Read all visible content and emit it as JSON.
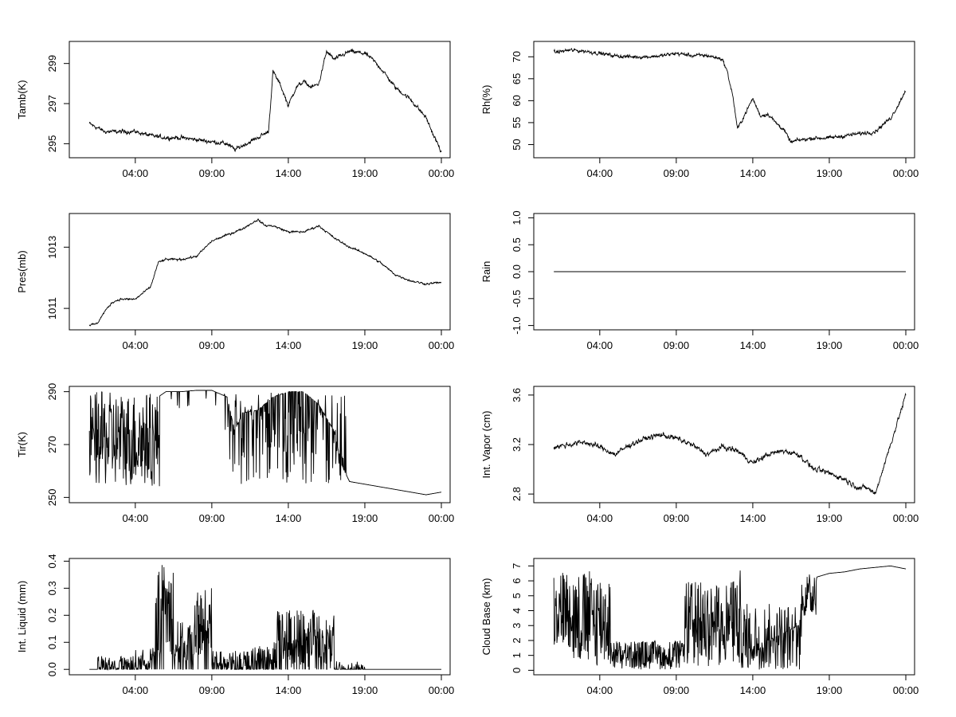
{
  "chart_data": [
    {
      "type": "line",
      "ylabel": "Tamb(K)",
      "xticks": [
        "04:00",
        "09:00",
        "14:00",
        "19:00",
        "00:00"
      ],
      "yticks": [
        "295",
        "297",
        "299"
      ],
      "xlim": [
        0,
        24
      ],
      "ylim": [
        294.3,
        300.1
      ],
      "noise": 0.12,
      "series": [
        {
          "x": [
            1,
            1.5,
            2,
            3,
            4,
            5,
            6,
            7,
            8,
            9,
            10,
            10.5,
            11,
            12,
            12.7,
            13,
            13.5,
            14,
            14.5,
            15,
            15.5,
            16,
            16.5,
            17,
            18,
            19,
            19.5,
            20,
            21,
            22,
            23,
            23.5,
            24
          ],
          "y": [
            296.0,
            295.8,
            295.6,
            295.6,
            295.6,
            295.4,
            295.3,
            295.3,
            295.2,
            295.1,
            295.0,
            294.7,
            294.9,
            295.3,
            295.6,
            298.6,
            297.9,
            296.9,
            297.8,
            298.1,
            297.8,
            298.0,
            299.6,
            299.2,
            299.6,
            299.5,
            299.2,
            298.8,
            297.8,
            297.2,
            296.3,
            295.4,
            294.6
          ]
        }
      ]
    },
    {
      "type": "line",
      "ylabel": "Rh(%)",
      "xticks": [
        "04:00",
        "09:00",
        "14:00",
        "19:00",
        "00:00"
      ],
      "yticks": [
        "50",
        "55",
        "60",
        "65",
        "70"
      ],
      "xlim": [
        0,
        24
      ],
      "ylim": [
        47,
        73.5
      ],
      "noise": 0.5,
      "series": [
        {
          "x": [
            1,
            2,
            3,
            4,
            5,
            6,
            7,
            8,
            9,
            10,
            11,
            12,
            12.3,
            12.7,
            13,
            13.5,
            14,
            14.5,
            15,
            15.5,
            16,
            16.5,
            17,
            18,
            19,
            20,
            21,
            22,
            23,
            23.5,
            24
          ],
          "y": [
            71.0,
            71.5,
            71.3,
            70.8,
            70.2,
            70.0,
            70.0,
            70.2,
            70.8,
            70.3,
            70.3,
            69.5,
            67.0,
            61.0,
            53.5,
            57.0,
            60.5,
            56.5,
            57.0,
            55.0,
            53.5,
            50.5,
            51.0,
            51.5,
            51.5,
            52.0,
            52.5,
            53.0,
            56.0,
            59.0,
            62.5
          ]
        }
      ]
    },
    {
      "type": "line",
      "ylabel": "Pres(mb)",
      "xticks": [
        "04:00",
        "09:00",
        "14:00",
        "19:00",
        "00:00"
      ],
      "yticks": [
        "1011",
        "1013"
      ],
      "xlim": [
        0,
        24
      ],
      "ylim": [
        1010.3,
        1014.1
      ],
      "noise": 0.04,
      "series": [
        {
          "x": [
            1,
            1.5,
            2,
            2.5,
            3,
            4,
            5,
            5.5,
            6,
            7,
            8,
            9,
            10,
            11,
            12,
            12.5,
            13,
            14,
            15,
            16,
            17,
            18,
            19,
            20,
            21,
            22,
            23,
            24
          ],
          "y": [
            1010.45,
            1010.5,
            1010.9,
            1011.2,
            1011.3,
            1011.3,
            1011.7,
            1012.5,
            1012.6,
            1012.6,
            1012.7,
            1013.2,
            1013.4,
            1013.6,
            1013.9,
            1013.7,
            1013.7,
            1013.5,
            1013.5,
            1013.7,
            1013.3,
            1013.0,
            1012.8,
            1012.5,
            1012.1,
            1011.9,
            1011.8,
            1011.85
          ]
        }
      ]
    },
    {
      "type": "line",
      "ylabel": "Rain",
      "xticks": [
        "04:00",
        "09:00",
        "14:00",
        "19:00",
        "00:00"
      ],
      "yticks": [
        "-1.0",
        "-0.5",
        "0.0",
        "0.5",
        "1.0"
      ],
      "xlim": [
        0,
        24
      ],
      "ylim": [
        -1.08,
        1.08
      ],
      "noise": 0,
      "series": [
        {
          "x": [
            1,
            24
          ],
          "y": [
            0,
            0
          ]
        }
      ]
    },
    {
      "type": "line",
      "ylabel": "Tir(K)",
      "xticks": [
        "04:00",
        "09:00",
        "14:00",
        "19:00",
        "00:00"
      ],
      "yticks": [
        "250",
        "270",
        "290"
      ],
      "xlim": [
        0,
        24
      ],
      "ylim": [
        248,
        292
      ],
      "noise": 0,
      "series": [
        {
          "x": [
            1,
            2,
            3,
            4,
            5,
            5.5,
            6,
            7,
            8,
            9,
            10,
            10.5,
            11,
            12,
            13,
            14,
            15,
            16,
            17,
            17.5,
            18,
            19,
            20,
            21,
            22,
            23,
            24
          ],
          "y": [
            270,
            268,
            268,
            269,
            272,
            288,
            290,
            290,
            290.5,
            290.5,
            288,
            275,
            282,
            283,
            288,
            290,
            290,
            285,
            275,
            262,
            256,
            255,
            254,
            253,
            252,
            251,
            252
          ]
        }
      ],
      "spikes": {
        "step": 0.025,
        "ranges": [
          {
            "from": 1,
            "to": 5.6,
            "lo": 254,
            "hi": 290,
            "prob": 1
          },
          {
            "from": 6.2,
            "to": 9.8,
            "lo": 282,
            "hi": 290,
            "prob": 0.06
          },
          {
            "from": 9.8,
            "to": 17.8,
            "lo": 255,
            "hi": 290,
            "prob": 0.45
          }
        ]
      }
    },
    {
      "type": "line",
      "ylabel": "Int. Vapor (cm)",
      "xticks": [
        "04:00",
        "09:00",
        "14:00",
        "19:00",
        "00:00"
      ],
      "yticks": [
        "2.8",
        "3.2",
        "3.6"
      ],
      "xlim": [
        0,
        24
      ],
      "ylim": [
        2.73,
        3.67
      ],
      "noise": 0.025,
      "series": [
        {
          "x": [
            1,
            2,
            3,
            4,
            5,
            6,
            7,
            8,
            9,
            10,
            11,
            12,
            13,
            14,
            15,
            16,
            17,
            18,
            19,
            20,
            20.5,
            21,
            21.5,
            22,
            22.5,
            23,
            23.5,
            24
          ],
          "y": [
            3.18,
            3.2,
            3.22,
            3.18,
            3.12,
            3.2,
            3.25,
            3.28,
            3.25,
            3.2,
            3.12,
            3.18,
            3.15,
            3.05,
            3.12,
            3.15,
            3.12,
            3.0,
            2.97,
            2.92,
            2.88,
            2.85,
            2.85,
            2.8,
            3.0,
            3.2,
            3.4,
            3.6
          ]
        }
      ]
    },
    {
      "type": "line",
      "ylabel": "Int. Liquid (mm)",
      "xticks": [
        "04:00",
        "09:00",
        "14:00",
        "19:00",
        "00:00"
      ],
      "yticks": [
        "0.0",
        "0.1",
        "0.2",
        "0.3",
        "0.4"
      ],
      "xlim": [
        0,
        24
      ],
      "ylim": [
        -0.02,
        0.41
      ],
      "noise": 0,
      "series": [
        {
          "x": [
            1,
            24
          ],
          "y": [
            0,
            0
          ]
        }
      ],
      "spikes": {
        "step": 0.025,
        "ranges": [
          {
            "from": 1.5,
            "to": 4,
            "lo": 0,
            "hi": 0.05,
            "prob": 0.6
          },
          {
            "from": 4,
            "to": 5.3,
            "lo": 0,
            "hi": 0.08,
            "prob": 0.7
          },
          {
            "from": 5.3,
            "to": 6.5,
            "lo": 0.05,
            "hi": 0.39,
            "prob": 0.85
          },
          {
            "from": 6.5,
            "to": 7.8,
            "lo": 0.02,
            "hi": 0.18,
            "prob": 0.8
          },
          {
            "from": 7.8,
            "to": 9.0,
            "lo": 0.05,
            "hi": 0.3,
            "prob": 0.85
          },
          {
            "from": 9.0,
            "to": 11.5,
            "lo": 0,
            "hi": 0.07,
            "prob": 0.55
          },
          {
            "from": 11.5,
            "to": 13.2,
            "lo": 0,
            "hi": 0.1,
            "prob": 0.65
          },
          {
            "from": 13.2,
            "to": 17.0,
            "lo": 0,
            "hi": 0.22,
            "prob": 0.8
          },
          {
            "from": 17.0,
            "to": 19.0,
            "lo": 0,
            "hi": 0.03,
            "prob": 0.25
          }
        ]
      }
    },
    {
      "type": "line",
      "ylabel": "Cloud Base (km)",
      "xticks": [
        "04:00",
        "09:00",
        "14:00",
        "19:00",
        "00:00"
      ],
      "yticks": [
        "0",
        "1",
        "2",
        "3",
        "4",
        "5",
        "6",
        "7"
      ],
      "xlim": [
        0,
        24
      ],
      "ylim": [
        -0.3,
        7.5
      ],
      "noise": 0,
      "series": [
        {
          "x": [
            1,
            2,
            3,
            4,
            5,
            6,
            7,
            8,
            9,
            10,
            11,
            12,
            13,
            14,
            15,
            16,
            17,
            17.5,
            18,
            19,
            20,
            21,
            22,
            23,
            24
          ],
          "y": [
            4,
            3,
            3,
            3,
            1,
            0.8,
            1,
            1.2,
            0.5,
            3,
            4,
            2.5,
            1,
            1,
            2,
            2.5,
            3,
            5.5,
            6.2,
            6.5,
            6.6,
            6.8,
            6.9,
            7.0,
            6.8
          ]
        }
      ],
      "spikes": {
        "step": 0.025,
        "ranges": [
          {
            "from": 1,
            "to": 2.2,
            "lo": 1.5,
            "hi": 6.8,
            "prob": 1
          },
          {
            "from": 2.2,
            "to": 4.7,
            "lo": 0.2,
            "hi": 6.7,
            "prob": 1
          },
          {
            "from": 4.7,
            "to": 9.5,
            "lo": 0.05,
            "hi": 2.0,
            "prob": 0.9
          },
          {
            "from": 9.5,
            "to": 12.5,
            "lo": 0.2,
            "hi": 6.0,
            "prob": 0.85
          },
          {
            "from": 12.5,
            "to": 13.2,
            "lo": 0.1,
            "hi": 6.8,
            "prob": 0.9
          },
          {
            "from": 13.2,
            "to": 17.2,
            "lo": 0.05,
            "hi": 4.5,
            "prob": 0.8
          },
          {
            "from": 17.2,
            "to": 18.2,
            "lo": 3.5,
            "hi": 6.5,
            "prob": 0.8
          }
        ]
      }
    }
  ]
}
